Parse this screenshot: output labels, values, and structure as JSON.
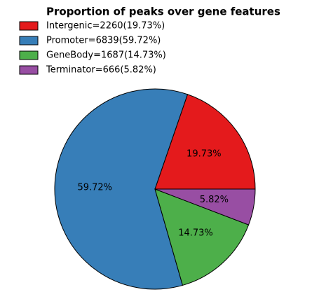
{
  "chart_data": {
    "type": "pie",
    "title": "Proportion of peaks over gene features",
    "categories": [
      "Intergenic=2260(19.73%)",
      "Promoter=6839(59.72%)",
      "GeneBody=1687(14.73%)",
      "Terminator=666(5.82%)"
    ],
    "values": [
      19.73,
      59.72,
      14.73,
      5.82
    ],
    "value_labels": [
      "19.73%",
      "59.72%",
      "14.73%",
      "5.82%"
    ],
    "colors": [
      "#e41a1c",
      "#377eb8",
      "#4daf4a",
      "#984ea3"
    ],
    "legend": "upper left"
  }
}
